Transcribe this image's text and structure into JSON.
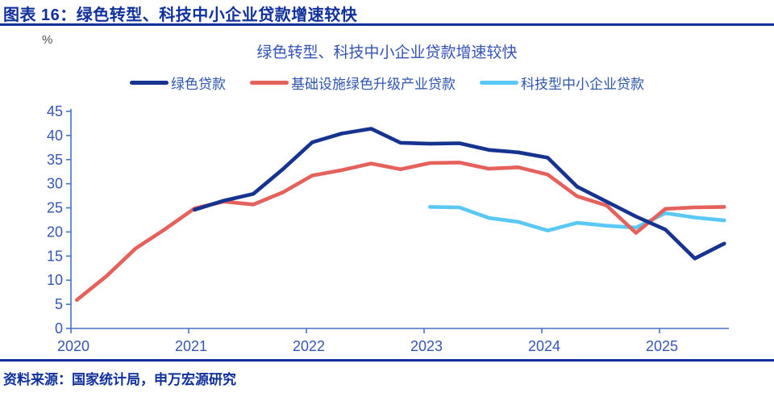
{
  "header": {
    "title": "图表 16：绿色转型、科技中小企业贷款增速较快"
  },
  "source": {
    "label": "资料来源：国家统计局，申万宏源研究"
  },
  "colors": {
    "navy_text": "#10309b",
    "axis": "#4472c4",
    "tick_label": "#3556b4",
    "title_blue": "#3353b7",
    "legend_text": "#2d55ae",
    "unit_gray": "#4d4d4d"
  },
  "chart_data": {
    "type": "line",
    "title": "绿色转型、科技中小企业贷款增速较快",
    "unit_label": "%",
    "xlabel": "",
    "ylabel": "%",
    "ylim": [
      0,
      45
    ],
    "y_ticks": [
      0,
      5,
      10,
      15,
      20,
      25,
      30,
      35,
      40,
      45
    ],
    "x_ticks": [
      2020,
      2021,
      2022,
      2023,
      2024,
      2025
    ],
    "x_tick_labels": [
      "2020",
      "2021",
      "2022",
      "2023",
      "2024",
      "2025"
    ],
    "xlim": [
      2020,
      2025.59
    ],
    "grid": false,
    "legend_position": "top",
    "series": [
      {
        "name": "绿色贷款",
        "color": "#16338f",
        "x": [
          2021.05,
          2021.3,
          2021.55,
          2021.8,
          2022.05,
          2022.3,
          2022.55,
          2022.8,
          2023.05,
          2023.3,
          2023.55,
          2023.8,
          2024.05,
          2024.3,
          2024.55,
          2024.8,
          2025.05,
          2025.3,
          2025.55
        ],
        "values": [
          24.6,
          26.5,
          27.9,
          33.0,
          38.6,
          40.4,
          41.4,
          38.5,
          38.3,
          38.4,
          37.0,
          36.5,
          35.4,
          29.4,
          26.3,
          23.2,
          20.5,
          14.5,
          17.6
        ]
      },
      {
        "name": "基础设施绿色升级产业贷款",
        "color": "#e4615c",
        "x": [
          2020.05,
          2020.3,
          2020.55,
          2020.8,
          2021.05,
          2021.3,
          2021.55,
          2021.8,
          2022.05,
          2022.3,
          2022.55,
          2022.8,
          2023.05,
          2023.3,
          2023.55,
          2023.8,
          2024.05,
          2024.3,
          2024.55,
          2024.8,
          2025.05,
          2025.3,
          2025.55
        ],
        "values": [
          5.9,
          10.8,
          16.6,
          20.6,
          24.9,
          26.3,
          25.7,
          28.2,
          31.7,
          32.8,
          34.2,
          33.0,
          34.3,
          34.4,
          33.1,
          33.4,
          31.9,
          27.4,
          25.5,
          19.8,
          24.8,
          25.1,
          25.2
        ]
      },
      {
        "name": "科技型中小企业贷款",
        "color": "#5ac8f5",
        "x": [
          2023.05,
          2023.3,
          2023.55,
          2023.8,
          2024.05,
          2024.3,
          2024.55,
          2024.8,
          2025.05,
          2025.3,
          2025.55
        ],
        "values": [
          25.2,
          25.1,
          22.9,
          22.1,
          20.3,
          21.9,
          21.3,
          20.9,
          23.9,
          23.0,
          22.4
        ]
      }
    ]
  }
}
